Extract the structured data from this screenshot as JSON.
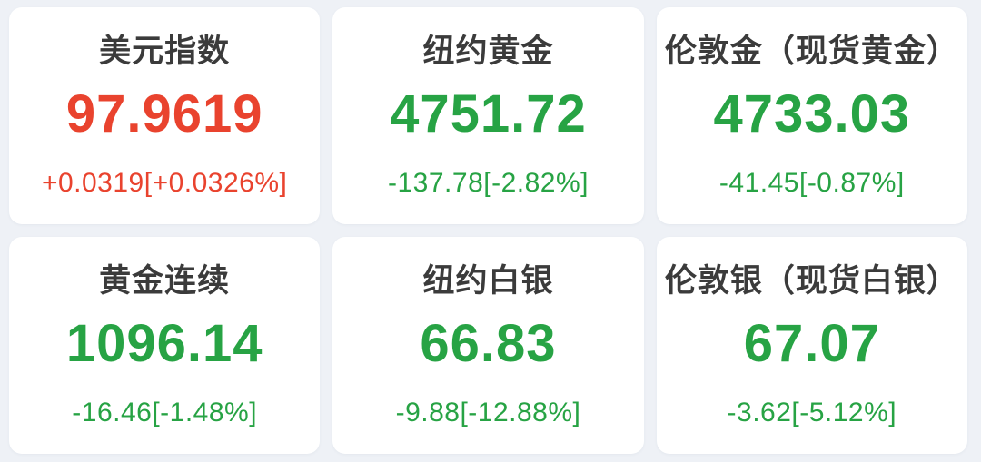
{
  "colors": {
    "up": "#e9432e",
    "down": "#27a344",
    "title_text": "#3b3b3b",
    "background": "#eef1f6",
    "card_background": "#ffffff"
  },
  "cards": [
    {
      "title": "美元指数",
      "price": "97.9619",
      "change": "+0.0319[+0.0326%]",
      "direction": "up"
    },
    {
      "title": "纽约黄金",
      "price": "4751.72",
      "change": "-137.78[-2.82%]",
      "direction": "down"
    },
    {
      "title": "伦敦金（现货黄金）",
      "price": "4733.03",
      "change": "-41.45[-0.87%]",
      "direction": "down"
    },
    {
      "title": "黄金连续",
      "price": "1096.14",
      "change": "-16.46[-1.48%]",
      "direction": "down"
    },
    {
      "title": "纽约白银",
      "price": "66.83",
      "change": "-9.88[-12.88%]",
      "direction": "down"
    },
    {
      "title": "伦敦银（现货白银）",
      "price": "67.07",
      "change": "-3.62[-5.12%]",
      "direction": "down"
    }
  ]
}
